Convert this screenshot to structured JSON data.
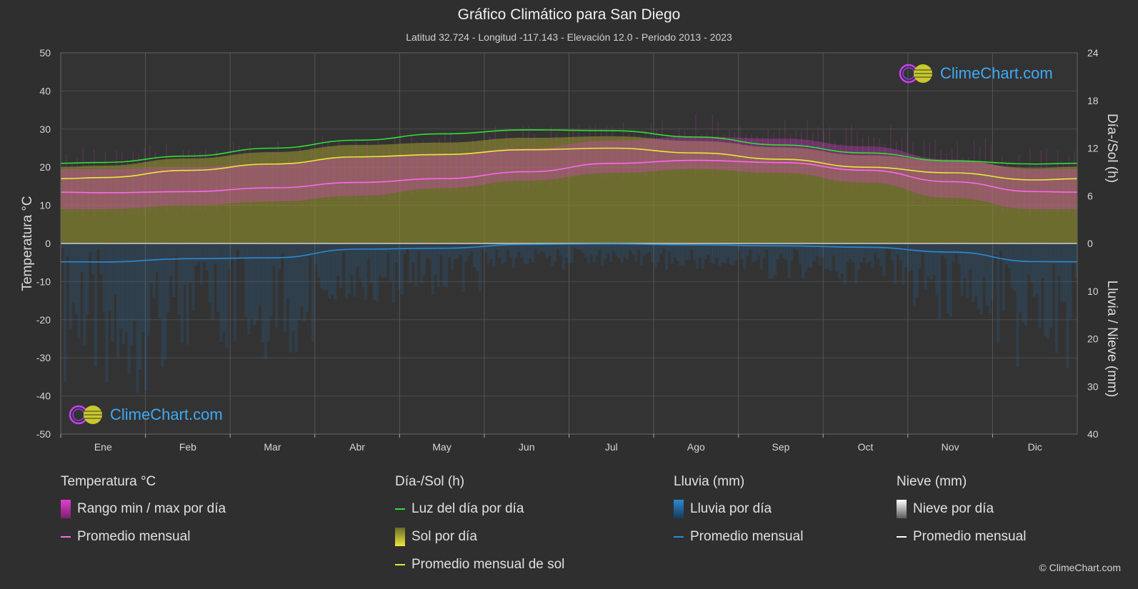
{
  "title": "Gráfico Climático para San Diego",
  "subtitle": "Latitud 32.724 - Longitud -117.143 - Elevación 12.0 - Periodo 2013 - 2023",
  "logo_text": "ClimeChart.com",
  "copyright": "© ClimeChart.com",
  "colors": {
    "background": "#2f2f2f",
    "daylight": "#33dd33",
    "sunshine_avg": "#e8e83a",
    "temp_avg": "#ff66ee",
    "rain_avg": "#2a8ad4",
    "snow_avg": "#ffffff",
    "temp_range": "#e040d0",
    "sunshine_fill": "#9a9a2a",
    "rain_fill": "#2a6aa0"
  },
  "legend": {
    "temperature": {
      "title": "Temperatura °C",
      "items": [
        "Rango min / max por día",
        "Promedio mensual"
      ]
    },
    "sun": {
      "title": "Día-/Sol (h)",
      "items": [
        "Luz del día por día",
        "Sol por día",
        "Promedio mensual de sol"
      ]
    },
    "rain": {
      "title": "Lluvia (mm)",
      "items": [
        "Lluvia por día",
        "Promedio mensual"
      ]
    },
    "snow": {
      "title": "Nieve (mm)",
      "items": [
        "Nieve por día",
        "Promedio mensual"
      ]
    }
  },
  "chart_data": {
    "type": "line",
    "categories": [
      "Ene",
      "Feb",
      "Mar",
      "Abr",
      "May",
      "Jun",
      "Jul",
      "Ago",
      "Sep",
      "Oct",
      "Nov",
      "Dic"
    ],
    "y_left": {
      "label": "Temperatura °C",
      "range": [
        -50,
        50
      ],
      "ticks": [
        50,
        40,
        30,
        20,
        10,
        0,
        -10,
        -20,
        -30,
        -40,
        -50
      ]
    },
    "y_right_top": {
      "label": "Día-/Sol (h)",
      "range": [
        0,
        24
      ],
      "ticks": [
        24,
        18,
        12,
        6,
        0
      ]
    },
    "y_right_bottom": {
      "label": "Lluvia / Nieve (mm)",
      "range": [
        0,
        40
      ],
      "ticks": [
        10,
        20,
        30,
        40
      ]
    },
    "grid": true,
    "series": [
      {
        "name": "Luz del día por día",
        "axis": "hours",
        "values": [
          10.2,
          11.0,
          12.0,
          13.0,
          13.8,
          14.3,
          14.2,
          13.4,
          12.4,
          11.4,
          10.4,
          10.0
        ]
      },
      {
        "name": "Promedio mensual de sol",
        "axis": "hours",
        "values": [
          8.3,
          9.2,
          10.0,
          10.9,
          11.2,
          11.8,
          12.0,
          11.4,
          10.6,
          9.6,
          8.9,
          8.0
        ]
      },
      {
        "name": "Promedio mensual",
        "group": "Temperatura °C",
        "axis": "temperature",
        "values": [
          13.3,
          13.6,
          14.6,
          16.0,
          17.0,
          18.8,
          21.0,
          21.8,
          21.2,
          19.2,
          16.2,
          13.6
        ]
      },
      {
        "name": "Promedio mensual",
        "group": "Lluvia (mm)",
        "axis": "rain",
        "values": [
          3.9,
          3.2,
          3.0,
          1.2,
          1.0,
          0.2,
          0.1,
          0.3,
          0.5,
          0.8,
          1.8,
          3.8
        ]
      },
      {
        "name": "Promedio mensual",
        "group": "Nieve (mm)",
        "axis": "snow",
        "values": [
          0,
          0,
          0,
          0,
          0,
          0,
          0,
          0,
          0,
          0,
          0,
          0
        ]
      }
    ],
    "temp_range_band": {
      "min": [
        9,
        10,
        11,
        12.5,
        14.5,
        16.5,
        18.5,
        19.5,
        18.5,
        16,
        12,
        9
      ],
      "max": [
        19.5,
        20,
        21,
        22.5,
        23.5,
        25,
        27,
        28,
        27.5,
        25.5,
        22,
        19.5
      ]
    }
  }
}
